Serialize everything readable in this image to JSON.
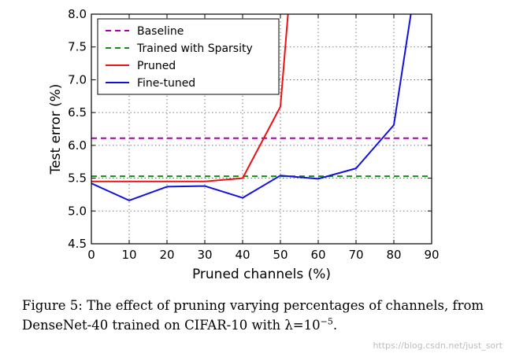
{
  "chart_data": {
    "type": "line",
    "xlabel": "Pruned channels (%)",
    "ylabel": "Test error (%)",
    "xlim": [
      0,
      90
    ],
    "ylim": [
      4.5,
      8.0
    ],
    "xticks": [
      0,
      10,
      20,
      30,
      40,
      50,
      60,
      70,
      80,
      90
    ],
    "yticks": [
      4.5,
      5.0,
      5.5,
      6.0,
      6.5,
      7.0,
      7.5,
      8.0
    ],
    "xtick_labels": [
      "0",
      "10",
      "20",
      "30",
      "40",
      "50",
      "60",
      "70",
      "80",
      "90"
    ],
    "ytick_labels": [
      "4.5",
      "5.0",
      "5.5",
      "6.0",
      "6.5",
      "7.0",
      "7.5",
      "8.0"
    ],
    "grid": true,
    "legend_position": "top-left",
    "series": [
      {
        "name": "Baseline",
        "color": "#aa00aa",
        "style": "dashed",
        "x": [
          0,
          90
        ],
        "y": [
          6.11,
          6.11
        ]
      },
      {
        "name": "Trained with Sparsity",
        "color": "#1a8a1a",
        "style": "dashed",
        "x": [
          0,
          90
        ],
        "y": [
          5.53,
          5.53
        ]
      },
      {
        "name": "Pruned",
        "color": "#ee1111",
        "style": "solid",
        "x": [
          0,
          10,
          20,
          30,
          40,
          50,
          52
        ],
        "y": [
          5.45,
          5.45,
          5.45,
          5.45,
          5.5,
          6.59,
          8.0
        ]
      },
      {
        "name": "Fine-tuned",
        "color": "#1111dd",
        "style": "solid",
        "x": [
          0,
          10,
          20,
          30,
          40,
          50,
          60,
          70,
          80,
          84.5
        ],
        "y": [
          5.42,
          5.16,
          5.37,
          5.38,
          5.2,
          5.54,
          5.49,
          5.65,
          6.31,
          8.0
        ]
      }
    ]
  },
  "caption": {
    "text": "Figure 5: The effect of pruning varying percentages of channels, from DenseNet-40 trained on CIFAR-10 with λ=10",
    "exponent": "−5",
    "suffix": "."
  },
  "watermark": "https://blog.csdn.net/just_sort"
}
